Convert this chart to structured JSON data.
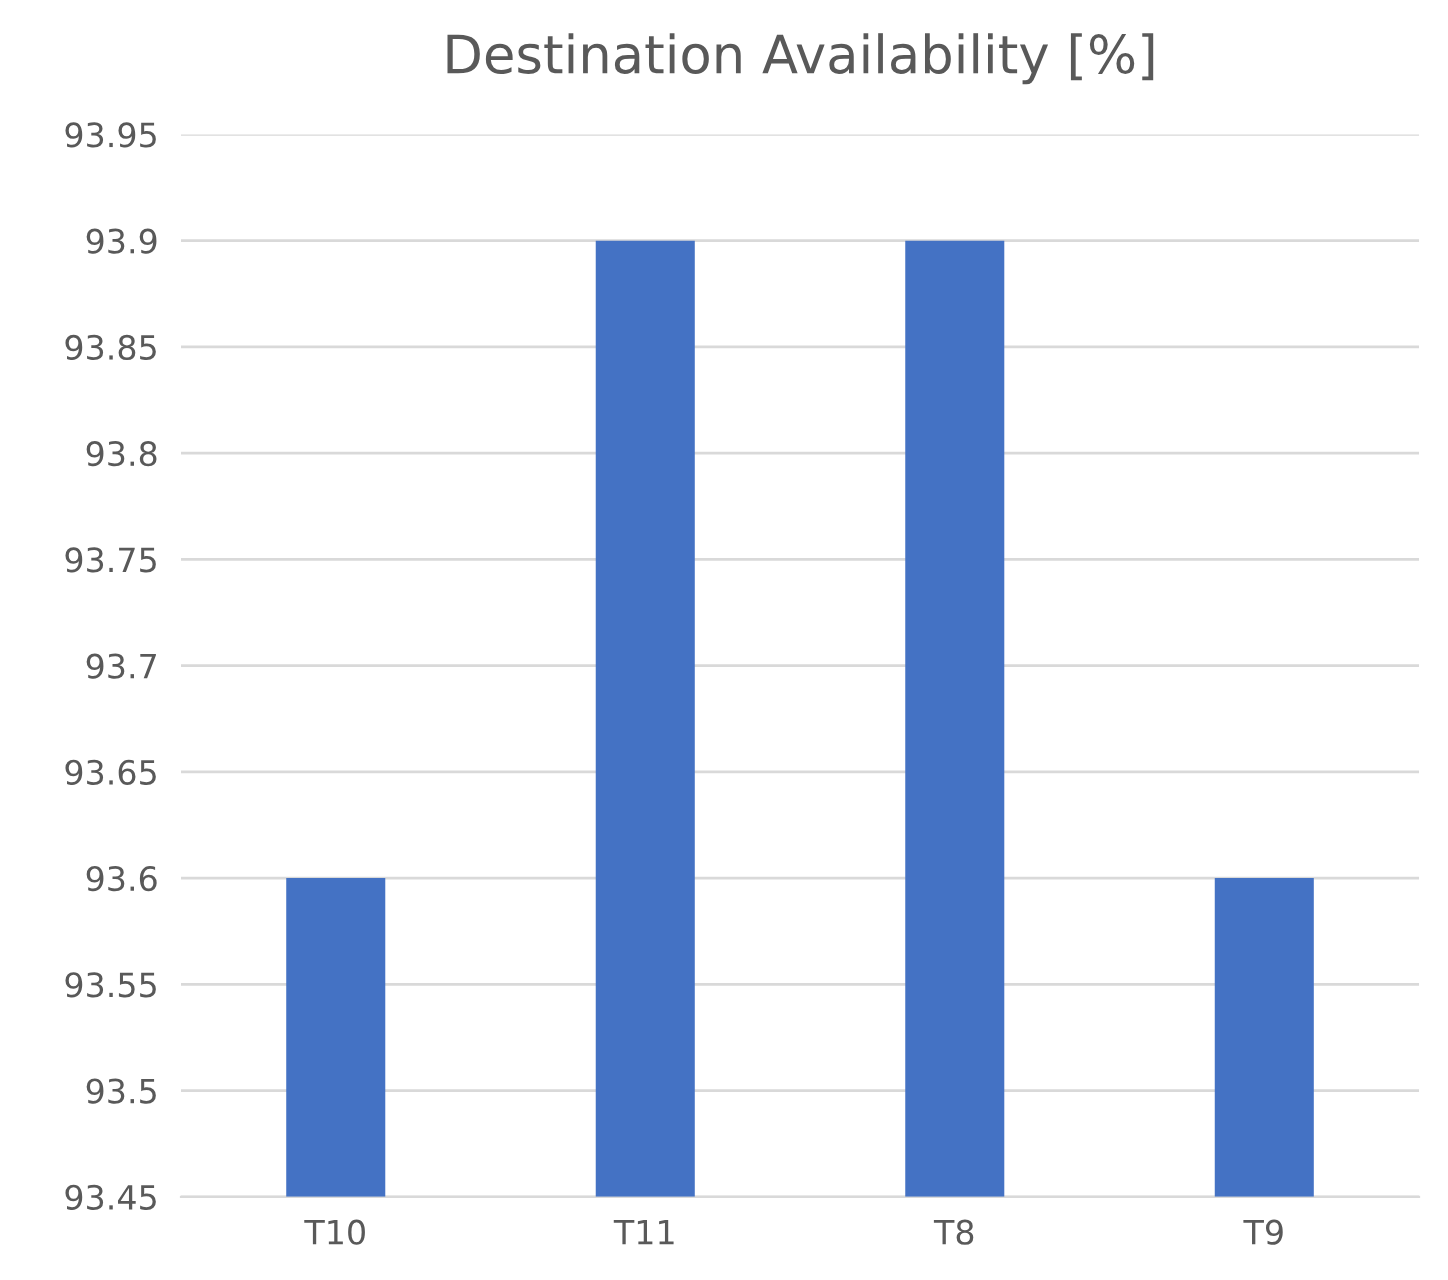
{
  "chart_data": {
    "type": "bar",
    "title": "Destination Availability [%]",
    "categories": [
      "T10",
      "T11",
      "T8",
      "T9"
    ],
    "values": [
      93.6,
      93.9,
      93.9,
      93.6
    ],
    "color": "#4472c4",
    "ylim": [
      93.45,
      93.95
    ],
    "yticks": [
      93.45,
      93.5,
      93.55,
      93.6,
      93.65,
      93.7,
      93.75,
      93.8,
      93.85,
      93.9,
      93.95
    ],
    "grid": "y"
  }
}
